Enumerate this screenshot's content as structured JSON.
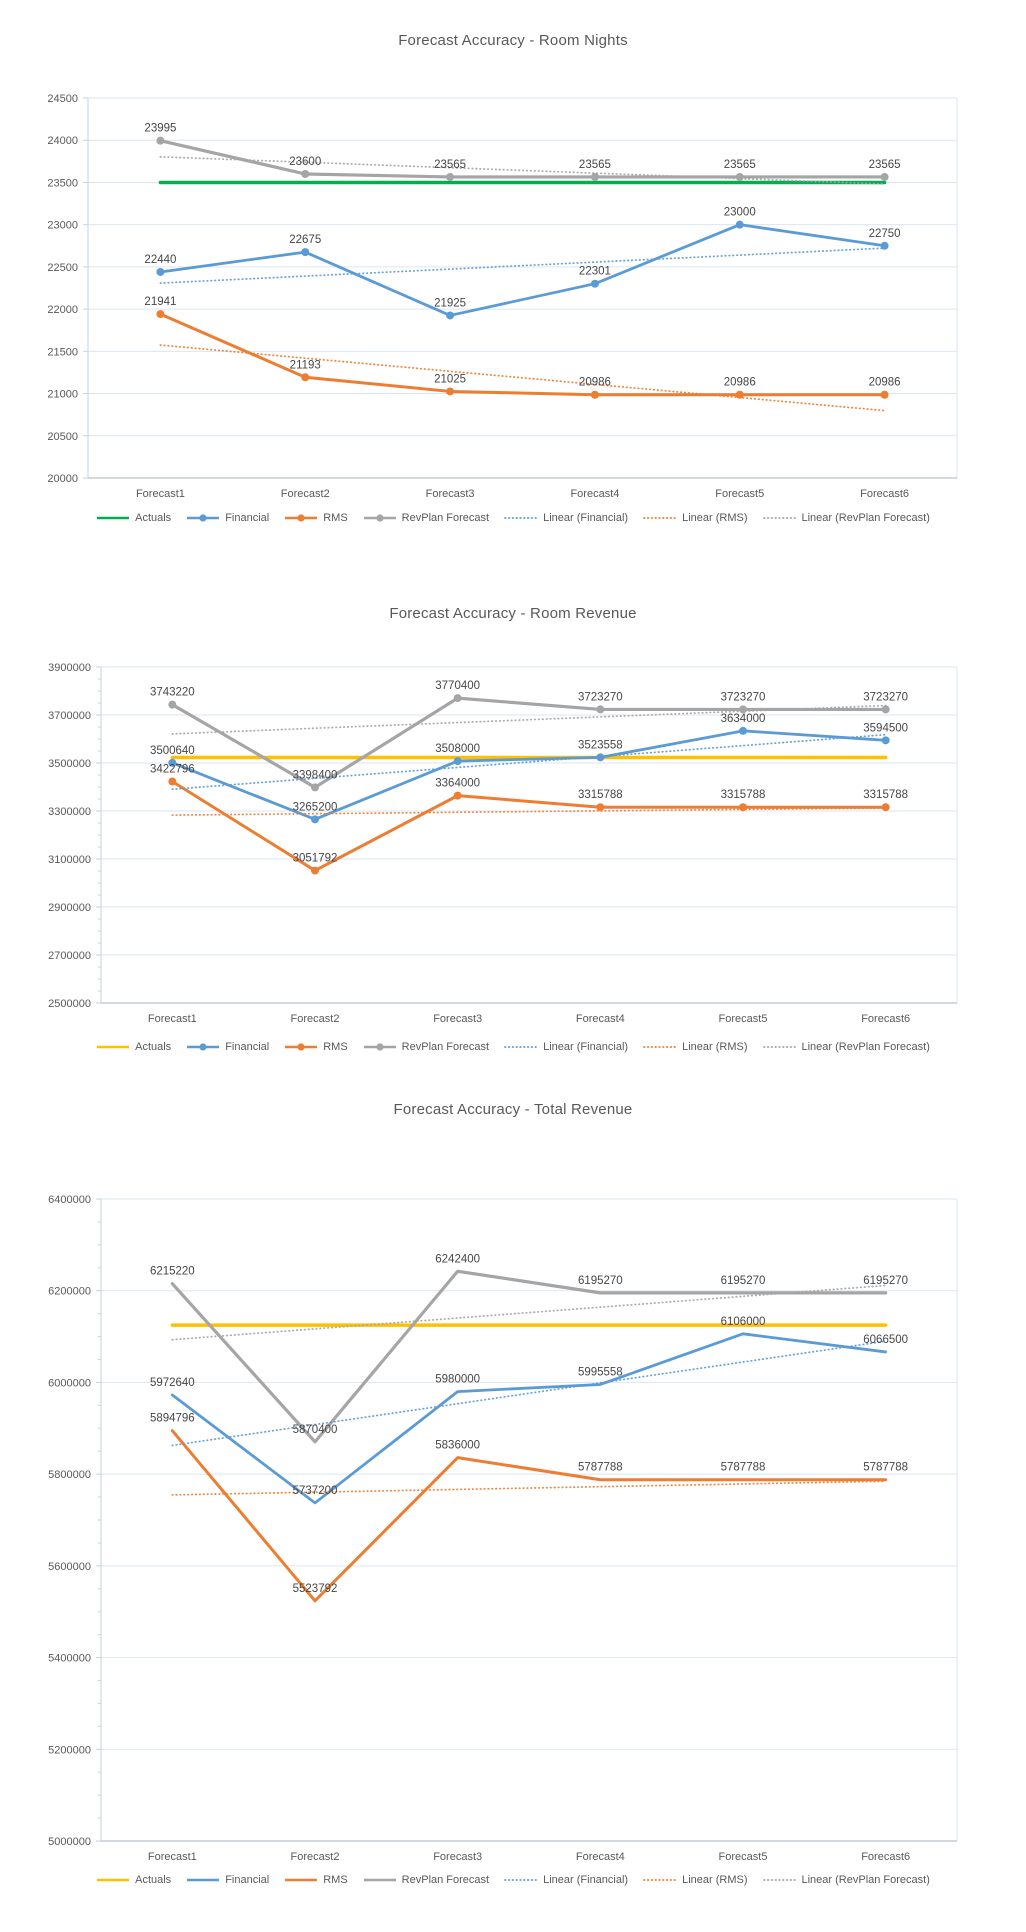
{
  "chart_data": [
    {
      "type": "line",
      "title": "Forecast Accuracy - Room Nights",
      "categories": [
        "Forecast1",
        "Forecast2",
        "Forecast3",
        "Forecast4",
        "Forecast5",
        "Forecast6"
      ],
      "ylim": [
        20000,
        24500
      ],
      "ytick_step": 500,
      "grid": true,
      "legend_position": "bottom",
      "series": [
        {
          "name": "Actuals",
          "color": "#00B050",
          "values": [
            23500,
            23500,
            23500,
            23500,
            23500,
            23500
          ],
          "markers": false,
          "data_labels": false
        },
        {
          "name": "Financial",
          "color": "#5B9BD5",
          "values": [
            22440,
            22675,
            21925,
            22301,
            23000,
            22750
          ],
          "markers": true,
          "data_labels": true
        },
        {
          "name": "RMS",
          "color": "#ED7D31",
          "values": [
            21941,
            21193,
            21025,
            20986,
            20986,
            20986
          ],
          "markers": true,
          "data_labels": true
        },
        {
          "name": "RevPlan Forecast",
          "color": "#A5A5A5",
          "values": [
            23995,
            23600,
            23565,
            23565,
            23565,
            23565
          ],
          "markers": true,
          "data_labels": true
        }
      ],
      "trendlines": [
        {
          "name": "Linear (Financial)",
          "source": "Financial",
          "color": "#5B9BD5"
        },
        {
          "name": "Linear (RMS)",
          "source": "RMS",
          "color": "#ED7D31"
        },
        {
          "name": "Linear (RevPlan Forecast)",
          "source": "RevPlan Forecast",
          "color": "#A5A5A5"
        }
      ]
    },
    {
      "type": "line",
      "title": "Forecast Accuracy - Room Revenue",
      "categories": [
        "Forecast1",
        "Forecast2",
        "Forecast3",
        "Forecast4",
        "Forecast5",
        "Forecast6"
      ],
      "ylim": [
        2500000,
        3900000
      ],
      "ytick_step": 200000,
      "grid": true,
      "legend_position": "bottom",
      "series": [
        {
          "name": "Actuals",
          "color": "#FFC000",
          "values": [
            3523000,
            3523000,
            3523000,
            3523000,
            3523000,
            3523000
          ],
          "markers": false,
          "data_labels": false
        },
        {
          "name": "Financial",
          "color": "#5B9BD5",
          "values": [
            3500640,
            3265200,
            3508000,
            3523558,
            3634000,
            3594500
          ],
          "markers": true,
          "data_labels": true
        },
        {
          "name": "RMS",
          "color": "#ED7D31",
          "values": [
            3422796,
            3051792,
            3364000,
            3315788,
            3315788,
            3315788
          ],
          "markers": true,
          "data_labels": true
        },
        {
          "name": "RevPlan Forecast",
          "color": "#A5A5A5",
          "values": [
            3743220,
            3398400,
            3770400,
            3723270,
            3723270,
            3723270
          ],
          "markers": true,
          "data_labels": true
        }
      ],
      "trendlines": [
        {
          "name": "Linear (Financial)",
          "source": "Financial",
          "color": "#5B9BD5"
        },
        {
          "name": "Linear (RMS)",
          "source": "RMS",
          "color": "#ED7D31"
        },
        {
          "name": "Linear (RevPlan Forecast)",
          "source": "RevPlan Forecast",
          "color": "#A5A5A5"
        }
      ]
    },
    {
      "type": "line",
      "title": "Forecast Accuracy - Total Revenue",
      "categories": [
        "Forecast1",
        "Forecast2",
        "Forecast3",
        "Forecast4",
        "Forecast5",
        "Forecast6"
      ],
      "ylim": [
        5000000,
        6400000
      ],
      "ytick_step": 200000,
      "grid": true,
      "legend_position": "bottom",
      "series": [
        {
          "name": "Actuals",
          "color": "#FFC000",
          "values": [
            6125000,
            6125000,
            6125000,
            6125000,
            6125000,
            6125000
          ],
          "markers": false,
          "data_labels": false
        },
        {
          "name": "Financial",
          "color": "#5B9BD5",
          "values": [
            5972640,
            5737200,
            5980000,
            5995558,
            6106000,
            6066500
          ],
          "markers": false,
          "data_labels": true
        },
        {
          "name": "RMS",
          "color": "#ED7D31",
          "values": [
            5894796,
            5523792,
            5836000,
            5787788,
            5787788,
            5787788
          ],
          "markers": false,
          "data_labels": true
        },
        {
          "name": "RevPlan Forecast",
          "color": "#A5A5A5",
          "values": [
            6215220,
            5870400,
            6242400,
            6195270,
            6195270,
            6195270
          ],
          "markers": false,
          "data_labels": true
        }
      ],
      "trendlines": [
        {
          "name": "Linear (Financial)",
          "source": "Financial",
          "color": "#5B9BD5"
        },
        {
          "name": "Linear (RMS)",
          "source": "RMS",
          "color": "#ED7D31"
        },
        {
          "name": "Linear (RevPlan Forecast)",
          "source": "RevPlan Forecast",
          "color": "#A5A5A5"
        }
      ]
    }
  ]
}
